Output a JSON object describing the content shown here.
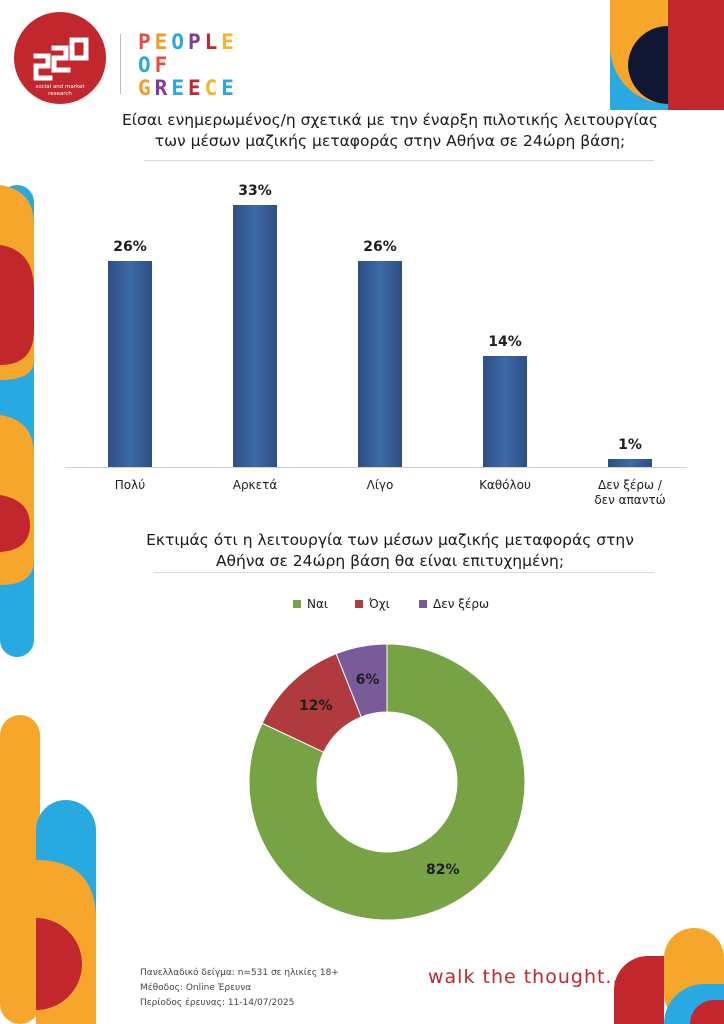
{
  "brand": {
    "logo_caption": "social and market\nresearch",
    "name_lines": [
      [
        {
          "ch": "P",
          "color": "#e94e3c"
        },
        {
          "ch": "E",
          "color": "#f39c2b"
        },
        {
          "ch": "O",
          "color": "#2aa8e0"
        },
        {
          "ch": "P",
          "color": "#7b3f98"
        },
        {
          "ch": "L",
          "color": "#c1272d"
        },
        {
          "ch": "E",
          "color": "#f3b52b"
        }
      ],
      [
        {
          "ch": "O",
          "color": "#2aa8e0"
        },
        {
          "ch": "F",
          "color": "#e94e3c"
        }
      ],
      [
        {
          "ch": "G",
          "color": "#f39c2b"
        },
        {
          "ch": "R",
          "color": "#7b3f98"
        },
        {
          "ch": "E",
          "color": "#2aa8e0"
        },
        {
          "ch": "E",
          "color": "#c1272d"
        },
        {
          "ch": "C",
          "color": "#f3b52b"
        },
        {
          "ch": "E",
          "color": "#2aa8e0"
        }
      ]
    ]
  },
  "title1": "Είσαι ενημερωμένος/η σχετικά με την έναρξη πιλοτικής λειτουργίας των μέσων μαζικής μεταφοράς στην Αθήνα σε 24ώρη βάση;",
  "title2": "Εκτιμάς ότι η λειτουργία των μέσων μαζικής μεταφοράς στην Αθήνα σε 24ώρη βάση θα είναι επιτυχημένη;",
  "chart_data": [
    {
      "type": "bar",
      "title": "Είσαι ενημερωμένος/η σχετικά με την έναρξη πιλοτικής λειτουργίας των μέσων μαζικής μεταφοράς στην Αθήνα σε 24ώρη βάση;",
      "categories": [
        "Πολύ",
        "Αρκετά",
        "Λίγο",
        "Καθόλου",
        "Δεν ξέρω / δεν απαντώ"
      ],
      "values": [
        26,
        33,
        26,
        14,
        1
      ],
      "data_labels": [
        "26%",
        "33%",
        "26%",
        "14%",
        "1%"
      ],
      "ylim": [
        0,
        35
      ],
      "color": "#3a64a0",
      "grid": false
    },
    {
      "type": "pie",
      "variant": "donut",
      "title": "Εκτιμάς ότι η λειτουργία των μέσων μαζικής μεταφοράς στην Αθήνα σε 24ώρη βάση θα είναι επιτυχημένη;",
      "categories": [
        "Ναι",
        "Όχι",
        "Δεν ξέρω"
      ],
      "values": [
        82,
        12,
        6
      ],
      "data_labels": [
        "82%",
        "12%",
        "6%"
      ],
      "colors": [
        "#78a345",
        "#b13a3f",
        "#7a5b9a"
      ],
      "legend_position": "top"
    }
  ],
  "footnote": [
    "Πανελλαδικό δείγμα: n=531 σε ηλικίες 18+",
    "Μέθοδος: Online Έρευνα",
    "Περίοδος έρευνας:  11-14/07/2025"
  ],
  "tagline": "walk the thought..."
}
